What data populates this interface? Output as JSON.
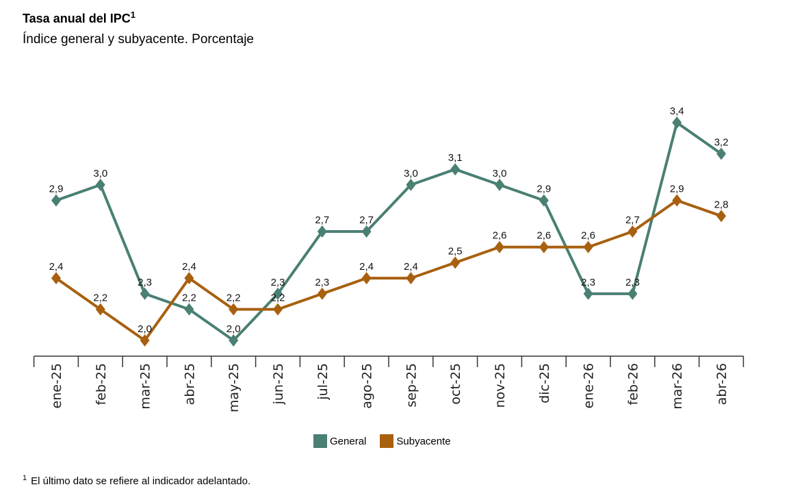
{
  "header": {
    "title": "Tasa anual del IPC",
    "title_sup": "1",
    "subtitle": "Índice general y subyacente. Porcentaje"
  },
  "footnote": {
    "marker": "1",
    "text": "El último dato se refiere al indicador adelantado."
  },
  "chart_data": {
    "type": "line",
    "title": "Tasa anual del IPC",
    "subtitle": "Índice general y subyacente. Porcentaje",
    "categories": [
      "ene-25",
      "feb-25",
      "mar-25",
      "abr-25",
      "may-25",
      "jun-25",
      "jul-25",
      "ago-25",
      "sep-25",
      "oct-25",
      "nov-25",
      "dic-25",
      "ene-26",
      "feb-26",
      "mar-26",
      "abr-26"
    ],
    "series": [
      {
        "name": "General",
        "color": "#4a7f74",
        "values": [
          2.9,
          3.0,
          2.3,
          2.2,
          2.0,
          2.3,
          2.7,
          2.7,
          3.0,
          3.1,
          3.0,
          2.9,
          2.3,
          2.3,
          3.4,
          3.2
        ]
      },
      {
        "name": "Subyacente",
        "color": "#a8600f",
        "values": [
          2.4,
          2.2,
          2.0,
          2.4,
          2.2,
          2.2,
          2.3,
          2.4,
          2.4,
          2.5,
          2.6,
          2.6,
          2.6,
          2.7,
          2.9,
          2.8
        ]
      }
    ],
    "marker": "diamond",
    "data_labels": true,
    "grid": false,
    "legend_position": "bottom",
    "xlabel": "",
    "ylabel": ""
  }
}
